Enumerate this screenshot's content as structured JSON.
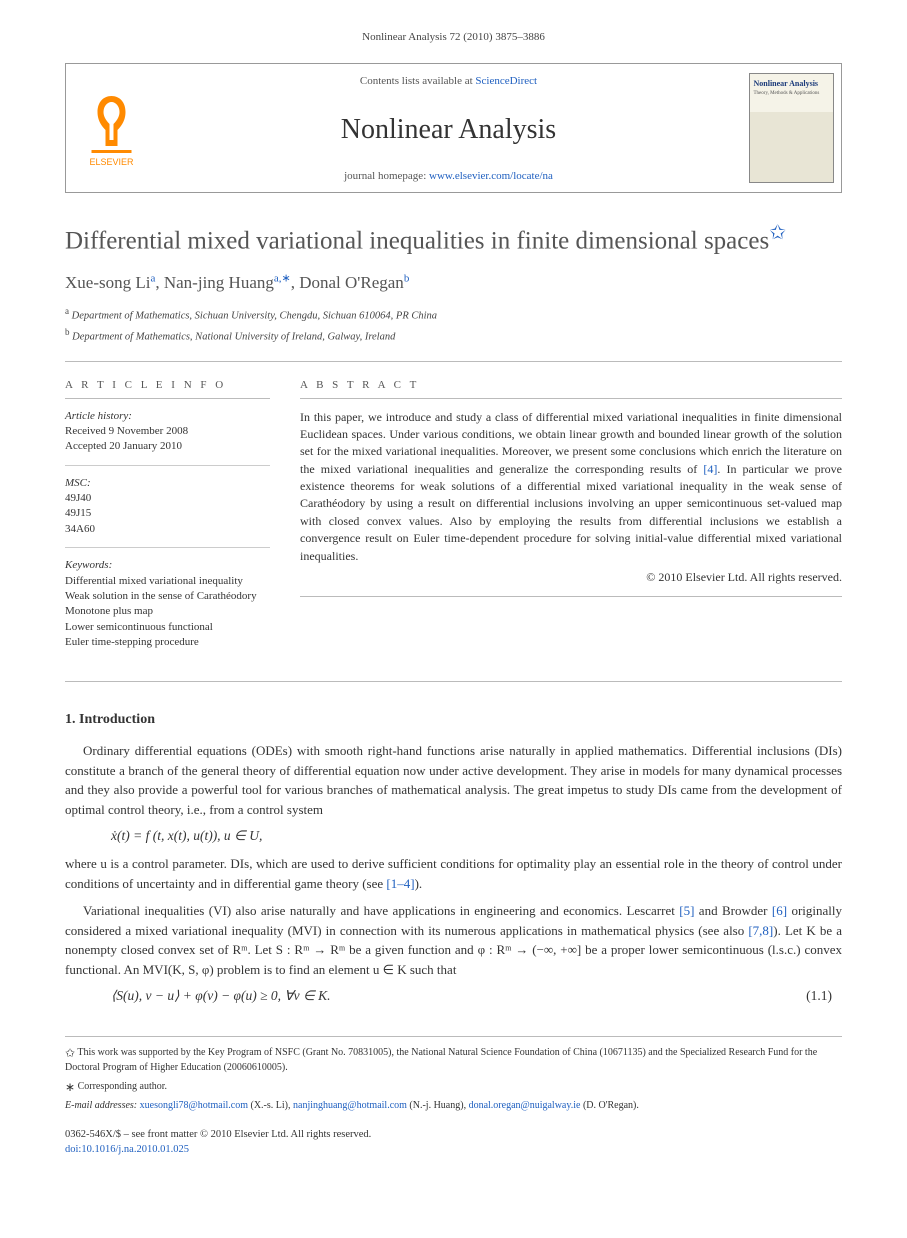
{
  "running_head": "Nonlinear Analysis 72 (2010) 3875–3886",
  "header": {
    "contents_prefix": "Contents lists available at ",
    "contents_link": "ScienceDirect",
    "journal_name": "Nonlinear Analysis",
    "homepage_prefix": "journal homepage: ",
    "homepage_link": "www.elsevier.com/locate/na",
    "publisher_name": "ELSEVIER",
    "cover_title": "Nonlinear Analysis",
    "cover_subtitle": "Theory, Methods & Applications"
  },
  "title": "Differential mixed variational inequalities in finite dimensional spaces",
  "title_note_mark": "✩",
  "authors": [
    {
      "name": "Xue-song Li",
      "affil_mark": "a"
    },
    {
      "name": "Nan-jing Huang",
      "affil_mark": "a,∗"
    },
    {
      "name": "Donal O'Regan",
      "affil_mark": "b"
    }
  ],
  "affiliations": [
    {
      "mark": "a",
      "text": "Department of Mathematics, Sichuan University, Chengdu, Sichuan 610064, PR China"
    },
    {
      "mark": "b",
      "text": "Department of Mathematics, National University of Ireland, Galway, Ireland"
    }
  ],
  "article_info": {
    "heading": "A R T I C L E   I N F O",
    "history_label": "Article history:",
    "received": "Received 9 November 2008",
    "accepted": "Accepted 20 January 2010",
    "msc_label": "MSC:",
    "msc": [
      "49J40",
      "49J15",
      "34A60"
    ],
    "keywords_label": "Keywords:",
    "keywords": [
      "Differential mixed variational inequality",
      "Weak solution in the sense of Carathéodory",
      "Monotone plus map",
      "Lower semicontinuous functional",
      "Euler time-stepping procedure"
    ]
  },
  "abstract": {
    "heading": "A B S T R A C T",
    "text": "In this paper, we introduce and study a class of differential mixed variational inequalities in finite dimensional Euclidean spaces. Under various conditions, we obtain linear growth and bounded linear growth of the solution set for the mixed variational inequalities. Moreover, we present some conclusions which enrich the literature on the mixed variational inequalities and generalize the corresponding results of [4]. In particular we prove existence theorems for weak solutions of a differential mixed variational inequality in the weak sense of Carathéodory by using a result on differential inclusions involving an upper semicontinuous set-valued map with closed convex values. Also by employing the results from differential inclusions we establish a convergence result on Euler time-dependent procedure for solving initial-value differential mixed variational inequalities.",
    "ref_in_text": "[4]",
    "copyright": "© 2010 Elsevier Ltd. All rights reserved."
  },
  "section1": {
    "heading": "1.  Introduction",
    "para1_a": "Ordinary differential equations (ODEs) with smooth right-hand functions arise naturally in applied mathematics. Differential inclusions (DIs) constitute a branch of the general theory of differential equation now under active development. They arise in models for many dynamical processes and they also provide a powerful tool for various branches of mathematical analysis. The great impetus to study DIs came from the development of optimal control theory, i.e., from a control system",
    "equation1": "ẋ(t) = f (t, x(t), u(t)),    u ∈ U,",
    "para1_b_pre": "where u is a control parameter. DIs, which are used to derive sufficient conditions for optimality play an essential role in the theory of control under conditions of uncertainty and in differential game theory (see ",
    "para1_b_ref": "[1–4]",
    "para1_b_post": ").",
    "para2_a": "Variational inequalities (VI) also arise naturally and have applications in engineering and economics. Lescarret ",
    "para2_ref5": "[5]",
    "para2_b": " and Browder ",
    "para2_ref6": "[6]",
    "para2_c": " originally considered a mixed variational inequality (MVI) in connection with its numerous applications in mathematical physics (see also ",
    "para2_ref78": "[7,8]",
    "para2_d": "). Let K be a nonempty closed convex set of Rᵐ. Let S : Rᵐ → Rᵐ be a given function and φ : Rᵐ → (−∞, +∞] be a proper lower semicontinuous (l.s.c.) convex functional. An MVI(K, S, φ) problem is to find an element u ∈ K such that",
    "equation2": "⟨S(u), v − u⟩ + φ(v) − φ(u) ≥ 0,    ∀v ∈ K.",
    "equation2_no": "(1.1)"
  },
  "footnotes": {
    "funding_mark": "✩",
    "funding": " This work was supported by the Key Program of NSFC (Grant No. 70831005), the National Natural Science Foundation of China (10671135) and the Specialized Research Fund for the Doctoral Program of Higher Education (20060610005).",
    "corr_mark": "∗",
    "corr": "Corresponding author.",
    "emails_label": "E-mail addresses:",
    "emails": [
      {
        "addr": "xuesongli78@hotmail.com",
        "who": "(X.-s. Li)"
      },
      {
        "addr": "nanjinghuang@hotmail.com",
        "who": "(N.-j. Huang)"
      },
      {
        "addr": "donal.oregan@nuigalway.ie",
        "who": "(D. O'Regan)"
      }
    ]
  },
  "bottom": {
    "line1": "0362-546X/$ – see front matter © 2010 Elsevier Ltd. All rights reserved.",
    "doi_label": "doi:",
    "doi": "10.1016/j.na.2010.01.025"
  },
  "colors": {
    "link": "#2060c0",
    "logo_orange": "#ff8a00",
    "text_gray": "#555555",
    "rule": "#bbbbbb"
  }
}
